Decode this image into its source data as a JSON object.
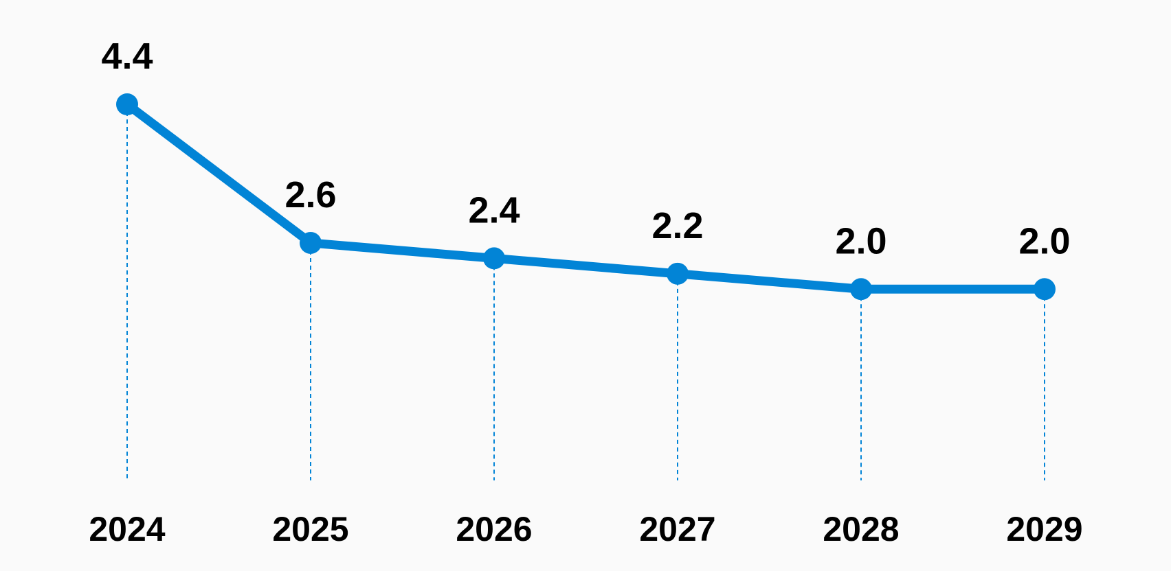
{
  "chart_data": {
    "type": "line",
    "title": "",
    "xlabel": "",
    "ylabel": "",
    "categories": [
      "2024",
      "2025",
      "2026",
      "2027",
      "2028",
      "2029"
    ],
    "series": [
      {
        "values": [
          4.4,
          2.6,
          2.4,
          2.2,
          2.0,
          2.0
        ],
        "data_labels": [
          "4.4",
          "2.6",
          "2.4",
          "2.2",
          "2.0",
          "2.0"
        ]
      }
    ],
    "ylim": [
      0,
      4.4
    ],
    "grid": false,
    "guides": "dashed vertical drop lines from each point to the x-axis",
    "legend": "none",
    "colors": {
      "line": "#0284d6",
      "guide": "#0284d6",
      "text": "#000000",
      "background": "#fafafa"
    }
  }
}
